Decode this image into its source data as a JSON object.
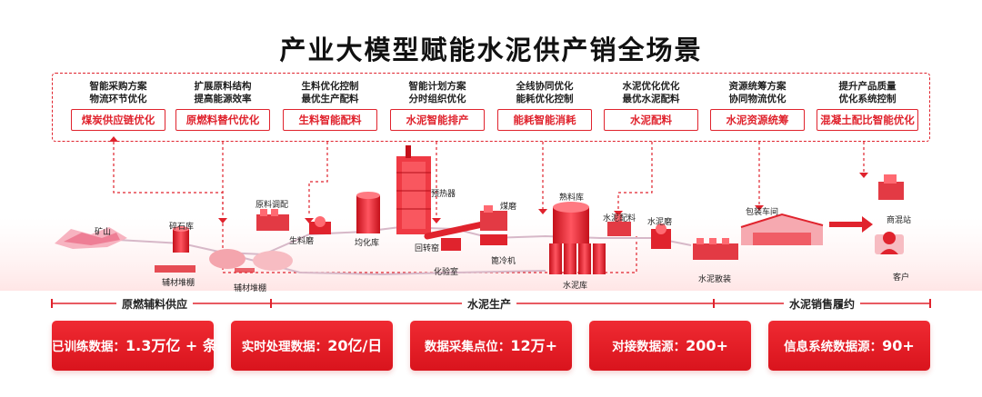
{
  "title": "产业大模型赋能水泥供产销全场景",
  "optimizations": [
    {
      "line1": "智能采购方案",
      "line2": "物流环节优化",
      "tag": "煤炭供应链优化"
    },
    {
      "line1": "扩展原料结构",
      "line2": "提高能源效率",
      "tag": "原燃料替代优化"
    },
    {
      "line1": "生料优化控制",
      "line2": "最优生产配料",
      "tag": "生料智能配料"
    },
    {
      "line1": "智能计划方案",
      "line2": "分时组织优化",
      "tag": "水泥智能排产"
    },
    {
      "line1": "全线协同优化",
      "line2": "能耗优化控制",
      "tag": "能耗智能消耗"
    },
    {
      "line1": "水泥优化优化",
      "line2": "最优水泥配料",
      "tag": "水泥配料"
    },
    {
      "line1": "资源统筹方案",
      "line2": "协同物流优化",
      "tag": "水泥资源统筹"
    },
    {
      "line1": "提升产品质量",
      "line2": "优化系统控制",
      "tag": "混凝土配比智能优化"
    }
  ],
  "scene_labels": {
    "mine": "矿山",
    "crushed_stone": "碎石库",
    "aux_shed_1": "辅材堆棚",
    "aux_shed_2": "辅材堆棚",
    "raw_blending": "原料调配",
    "raw_mill": "生料磨",
    "homogenizer": "均化库",
    "preheater": "预热器",
    "kiln": "回转窑",
    "lab": "化验室",
    "coal_mill": "煤磨",
    "cooler": "篦冷机",
    "clinker_silo": "熟料库",
    "cement_silo": "水泥库",
    "cement_batching": "水泥配料",
    "cement_mill": "水泥磨",
    "bulk_cement": "水泥散装",
    "packing": "包装车间",
    "ready_mix": "商混站",
    "customer": "客户"
  },
  "stages": [
    "原燃辅料供应",
    "水泥生产",
    "水泥销售履约"
  ],
  "stats": [
    {
      "label": "已训练数据：",
      "value": "1.3万亿 + 条"
    },
    {
      "label": "实时处理数据：",
      "value": "20亿/日"
    },
    {
      "label": "数据采集点位：",
      "value": "12万+"
    },
    {
      "label": "对接数据源：",
      "value": "200+"
    },
    {
      "label": "信息系统数据源：",
      "value": "90+"
    }
  ],
  "colors": {
    "accent": "#e0232d",
    "light": "#ff8a8f"
  }
}
